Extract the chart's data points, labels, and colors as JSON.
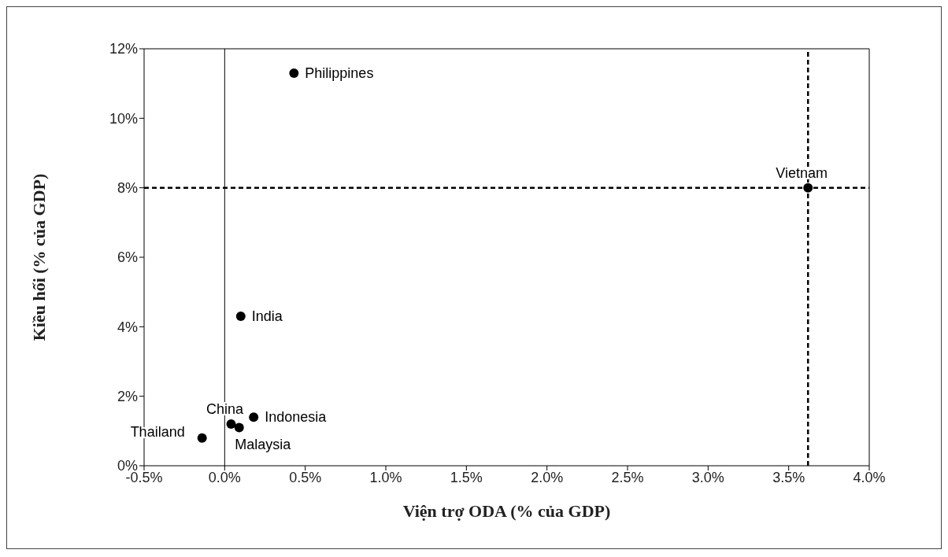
{
  "chart_data": {
    "type": "scatter",
    "xlabel": "Viện trợ ODA (% của GDP)",
    "ylabel": "Kiều hối (% của GDP)",
    "xlim": [
      -0.5,
      4.0
    ],
    "xticks": [
      {
        "value": -0.5,
        "label": "-0.5%"
      },
      {
        "value": 0,
        "label": "0.0%"
      },
      {
        "value": 0.5,
        "label": "0.5%"
      },
      {
        "value": 1,
        "label": "1.0%"
      },
      {
        "value": 1.5,
        "label": "1.5%"
      },
      {
        "value": 2,
        "label": "2.0%"
      },
      {
        "value": 2.5,
        "label": "2.5%"
      },
      {
        "value": 3,
        "label": "3.0%"
      },
      {
        "value": 3.5,
        "label": "3.5%"
      },
      {
        "value": 4,
        "label": "4.0%"
      }
    ],
    "ylim": [
      0,
      12
    ],
    "yticks": [
      {
        "value": 0,
        "label": "0%"
      },
      {
        "value": 2,
        "label": "2%"
      },
      {
        "value": 4,
        "label": "4%"
      },
      {
        "value": 6,
        "label": "6%"
      },
      {
        "value": 8,
        "label": "8%"
      },
      {
        "value": 10,
        "label": "10%"
      },
      {
        "value": 12,
        "label": "12%"
      }
    ],
    "grid": false,
    "legend": false,
    "marker": "circle",
    "series": [
      {
        "name": "Philippines",
        "color": "#000000",
        "x": [
          0.43
        ],
        "values": [
          11.3
        ]
      },
      {
        "name": "Vietnam",
        "color": "#000000",
        "x": [
          3.62
        ],
        "values": [
          8.0
        ]
      },
      {
        "name": "India",
        "color": "#000000",
        "x": [
          0.1
        ],
        "values": [
          4.3
        ]
      },
      {
        "name": "China",
        "color": "#000000",
        "x": [
          0.04
        ],
        "values": [
          1.2
        ]
      },
      {
        "name": "Indonesia",
        "color": "#000000",
        "x": [
          0.18
        ],
        "values": [
          1.4
        ]
      },
      {
        "name": "Malaysia",
        "color": "#000000",
        "x": [
          0.09
        ],
        "values": [
          1.1
        ]
      },
      {
        "name": "Thailand",
        "color": "#000000",
        "x": [
          -0.14
        ],
        "values": [
          0.8
        ]
      }
    ],
    "ref_lines": [
      {
        "axis": "y",
        "value": 8,
        "line_style": "dashed",
        "color": "#000000"
      },
      {
        "axis": "x",
        "value": 3.62,
        "line_style": "dashed",
        "color": "#000000"
      },
      {
        "axis": "x",
        "value": 0,
        "line_style": "solid",
        "color": "#000000"
      }
    ]
  }
}
